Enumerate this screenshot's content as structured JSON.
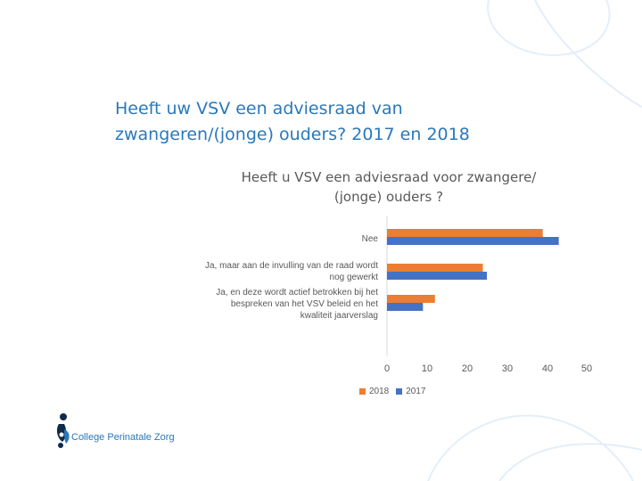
{
  "slide": {
    "title_line1": "Heeft uw VSV een adviesraad van",
    "title_line2": "zwangeren/(jonge) ouders? 2017 en 2018"
  },
  "chart_data": {
    "type": "bar",
    "orientation": "horizontal",
    "title_line1": "Heeft u VSV een adviesraad voor zwangere/",
    "title_line2": "(jonge)  ouders ?",
    "categories": [
      "Nee",
      "Ja, maar aan de invulling van de raad wordt nog gewerkt",
      "Ja, en deze wordt actief betrokken bij het bespreken van het VSV beleid en het kwaliteit jaarverslag"
    ],
    "category_label_lines": [
      [
        "Nee"
      ],
      [
        "Ja, maar aan de invulling van de raad wordt",
        "nog gewerkt"
      ],
      [
        "Ja, en deze wordt actief betrokken bij het",
        "bespreken van het VSV beleid en het",
        "kwaliteit jaarverslag"
      ]
    ],
    "series": [
      {
        "name": "2018",
        "color": "#ed7d31",
        "values": [
          39,
          24,
          12
        ]
      },
      {
        "name": "2017",
        "color": "#4472c4",
        "values": [
          43,
          25,
          9
        ]
      }
    ],
    "xlim": [
      0,
      50
    ],
    "xticks": [
      "0",
      "10",
      "20",
      "30",
      "40",
      "50"
    ],
    "legend_position": "bottom",
    "grid": false
  },
  "logo": {
    "text": "College Perinatale Zorg"
  }
}
